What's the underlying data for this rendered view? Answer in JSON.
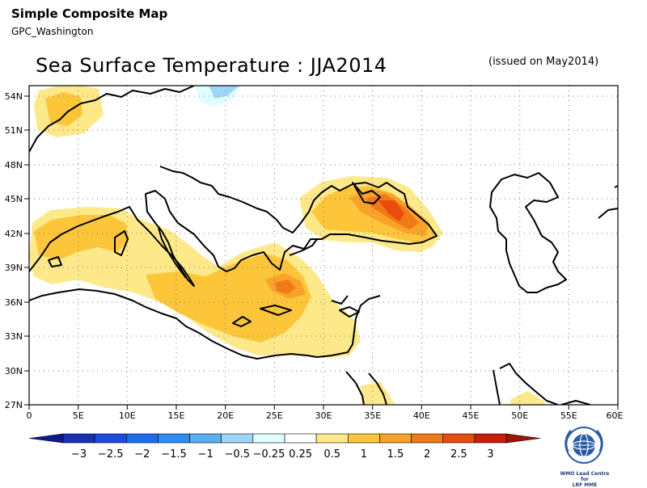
{
  "header": {
    "app_title": "Simple Composite Map",
    "subtitle": "GPC_Washington",
    "map_title": "Sea Surface Temperature : JJA2014",
    "issued": "(issued on May2014)"
  },
  "map": {
    "lat_labels": [
      "54N",
      "51N",
      "48N",
      "45N",
      "42N",
      "39N",
      "36N",
      "33N",
      "30N",
      "27N"
    ],
    "lon_labels": [
      "0",
      "5E",
      "10E",
      "15E",
      "20E",
      "25E",
      "30E",
      "35E",
      "40E",
      "45E",
      "50E",
      "55E",
      "60E"
    ],
    "lon_range": [
      0,
      60
    ],
    "lat_range": [
      27,
      55
    ],
    "grid": "dotted",
    "anomaly_colors": {
      "neg_025_05": "#e0fdff",
      "neg_05_1": "#9ed6f6",
      "pos_025_05": "#fde98a",
      "pos_05_1": "#fcc53a",
      "pos_1_15": "#f8a22a",
      "pos_15_2": "#f07a18",
      "pos_2_25": "#e94c0c"
    }
  },
  "colorbar": {
    "labels": [
      "−3",
      "−2.5",
      "−2",
      "−1.5",
      "−1",
      "−0.5",
      "−0.25",
      "0.25",
      "0.5",
      "1",
      "1.5",
      "2",
      "2.5",
      "3"
    ],
    "colors": [
      "#1a2fb5",
      "#1c4be0",
      "#1c6cf0",
      "#2c8ef2",
      "#5aaef2",
      "#9ed6f6",
      "#e0fdff",
      "#ffffff",
      "#fde98a",
      "#fcc53a",
      "#f8a22a",
      "#f07a18",
      "#e94c0c",
      "#c81e0a"
    ],
    "end_left_color": "#0a1a8a",
    "end_right_color": "#a01408"
  },
  "logo": {
    "caption_line1": "WMO Lead Centre for",
    "caption_line2": "LRF MME"
  }
}
